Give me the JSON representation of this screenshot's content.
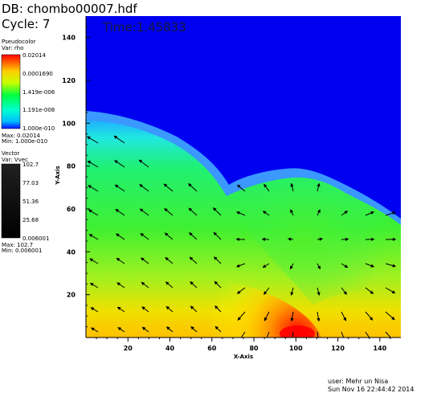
{
  "header": {
    "db": "DB: chombo00007.hdf",
    "cycle": "Cycle: 7",
    "time": "Time:1.45833"
  },
  "pseudocolor_legend": {
    "title": "Pseudocolor",
    "var": "Var: rho",
    "labels": [
      "0.02014",
      "0.0001690",
      "1.419e-006",
      "1.191e-008",
      "1.000e-010"
    ],
    "max": "Max: 0.02014",
    "min": "Min: 1.000e-010",
    "colors": [
      "#ff0000",
      "#ffff00",
      "#00ff00",
      "#00ffff",
      "#0000ff"
    ]
  },
  "vector_legend": {
    "title": "Vector",
    "var": "Var: Vvec",
    "labels": [
      "102.7",
      "77.03",
      "51.36",
      "25.68",
      "0.006001"
    ],
    "max": "Max: 102.7",
    "min": "Min: 0.006001"
  },
  "plot": {
    "x_axis_label": "X-Axis",
    "y_axis_label": "Y-Axis",
    "x_ticks": [
      "20",
      "40",
      "60",
      "80",
      "100",
      "120",
      "140"
    ],
    "y_ticks": [
      "20",
      "40",
      "60",
      "80",
      "100",
      "120",
      "140"
    ],
    "background_color": "#0000f0"
  },
  "footer": {
    "user": "user: Mehr un Nisa",
    "date": "Sun Nov 16 22:44:42 2014"
  }
}
